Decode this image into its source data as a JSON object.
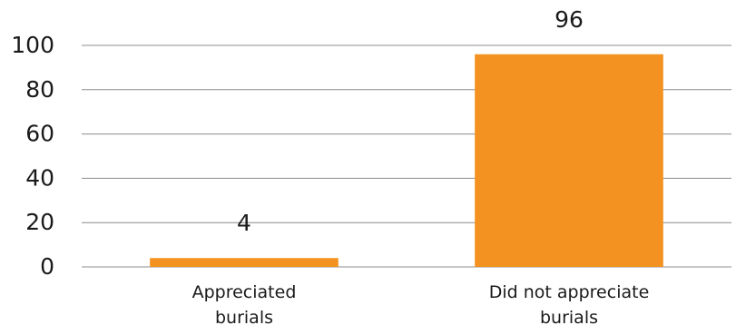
{
  "chart_data": {
    "type": "bar",
    "categories": [
      [
        "Appreciated",
        "burials"
      ],
      [
        "Did not appreciate",
        "burials"
      ]
    ],
    "values": [
      4,
      96
    ],
    "data_labels": [
      "4",
      "96"
    ],
    "title": "",
    "xlabel": "",
    "ylabel": "",
    "ylim": [
      0,
      100
    ],
    "yticks": [
      0,
      20,
      40,
      60,
      80,
      100
    ],
    "grid": true,
    "legend": "none",
    "bar_color": "#f39220"
  }
}
